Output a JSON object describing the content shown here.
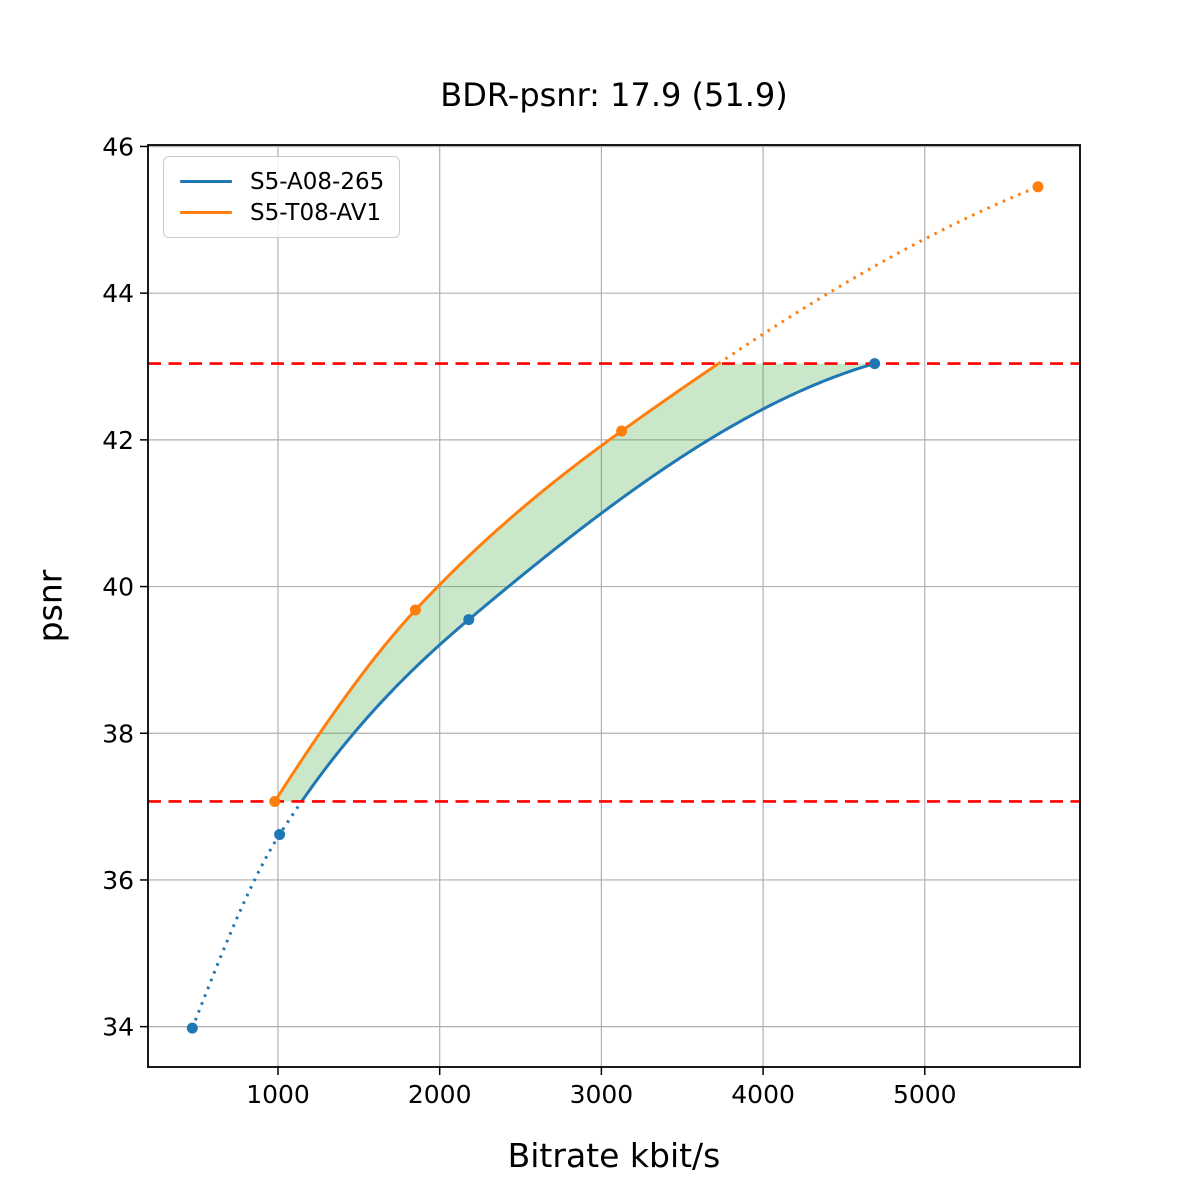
{
  "chart_data": {
    "type": "line",
    "title": "BDR-psnr: 17.9 (51.9)",
    "xlabel": "Bitrate kbit/s",
    "ylabel": "psnr",
    "xlim": [
      196,
      5960
    ],
    "ylim": [
      33.45,
      46.02
    ],
    "x_ticks": [
      1000,
      2000,
      3000,
      4000,
      5000
    ],
    "y_ticks": [
      34,
      36,
      38,
      40,
      42,
      44,
      46
    ],
    "grid": true,
    "grid_color": "#b0b0b0",
    "legend_position": "upper left",
    "interpolation": "pchip",
    "outside_overlap_style": "dotted",
    "series": [
      {
        "name": "S5-A08-265",
        "color": "#1f77b4",
        "x": [
          470,
          1010,
          2180,
          4690
        ],
        "y": [
          33.98,
          36.62,
          39.55,
          43.04
        ]
      },
      {
        "name": "S5-T08-AV1",
        "color": "#ff7f0e",
        "x": [
          980,
          1850,
          3125,
          5700
        ],
        "y": [
          37.07,
          39.68,
          42.12,
          45.45
        ]
      }
    ],
    "ref_lines": {
      "color": "#ff0000",
      "style": "dashed",
      "values": [
        37.07,
        43.04
      ]
    },
    "overlap_fill_color": "#2ca02c",
    "overlap_fill_alpha": 0.25
  }
}
